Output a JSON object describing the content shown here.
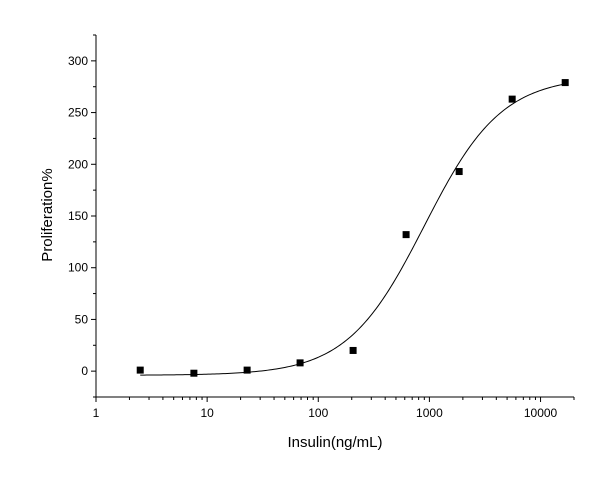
{
  "chart_data": {
    "type": "scatter",
    "title": "",
    "xlabel": "Insulin(ng/mL)",
    "ylabel": "Proliferation%",
    "x_scale": "log",
    "xlim": [
      1,
      20000
    ],
    "ylim": [
      -25,
      325
    ],
    "x_ticks": [
      {
        "value": 1,
        "label": "1"
      },
      {
        "value": 10,
        "label": "10"
      },
      {
        "value": 100,
        "label": "100"
      },
      {
        "value": 1000,
        "label": "1000"
      },
      {
        "value": 10000,
        "label": "10000"
      }
    ],
    "y_ticks": [
      {
        "value": 0,
        "label": "0"
      },
      {
        "value": 50,
        "label": "50"
      },
      {
        "value": 100,
        "label": "100"
      },
      {
        "value": 150,
        "label": "150"
      },
      {
        "value": 200,
        "label": "200"
      },
      {
        "value": 250,
        "label": "250"
      },
      {
        "value": 300,
        "label": "300"
      }
    ],
    "grid": false,
    "legend": "none",
    "marker_color": "#000000",
    "fit_curve_color": "#000000",
    "series": [
      {
        "marker": "square",
        "points": [
          {
            "x": 2.5,
            "y": 1
          },
          {
            "x": 7.6,
            "y": -2
          },
          {
            "x": 22.9,
            "y": 1
          },
          {
            "x": 68.6,
            "y": 8
          },
          {
            "x": 205.8,
            "y": 20
          },
          {
            "x": 617,
            "y": 132
          },
          {
            "x": 1852,
            "y": 193
          },
          {
            "x": 5556,
            "y": 263
          },
          {
            "x": 16667,
            "y": 279
          }
        ]
      }
    ],
    "fit_curve": {
      "model": "4PL",
      "bottom": -4,
      "top": 285,
      "ec50": 900,
      "hill": 1.25,
      "x_from": 2.5,
      "x_to": 16667
    }
  }
}
